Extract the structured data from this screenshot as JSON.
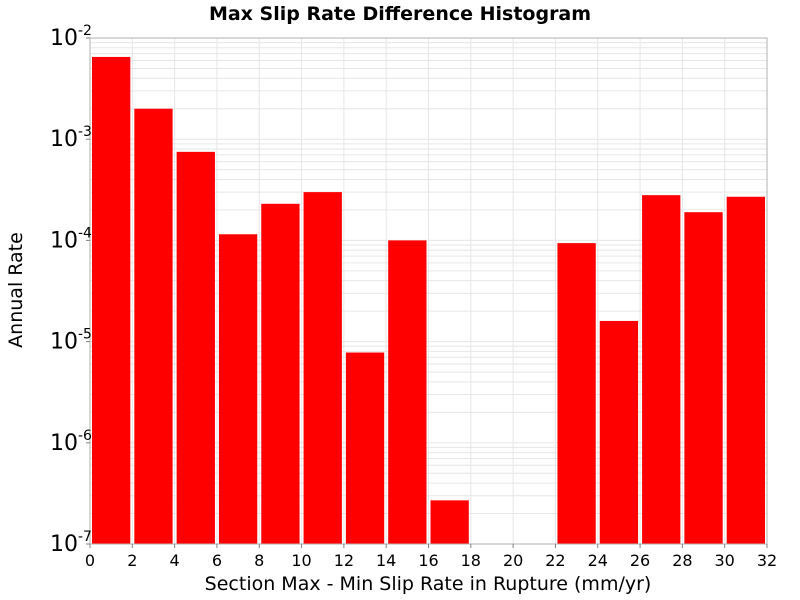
{
  "chart_data": {
    "type": "bar",
    "title": "Max Slip Rate Difference Histogram",
    "xlabel": "Section Max - Min Slip Rate in Rupture (mm/yr)",
    "ylabel": "Annual Rate",
    "x_ticks": [
      "0",
      "2",
      "4",
      "6",
      "8",
      "10",
      "12",
      "14",
      "16",
      "18",
      "20",
      "22",
      "24",
      "26",
      "28",
      "30",
      "32"
    ],
    "xlim": [
      0,
      32
    ],
    "y_scale": "log",
    "ylim": [
      1e-07,
      0.01
    ],
    "y_ticks": [
      {
        "base": "10",
        "exp": "-7"
      },
      {
        "base": "10",
        "exp": "-6"
      },
      {
        "base": "10",
        "exp": "-5"
      },
      {
        "base": "10",
        "exp": "-4"
      },
      {
        "base": "10",
        "exp": "-3"
      },
      {
        "base": "10",
        "exp": "-2"
      }
    ],
    "bin_width": 2,
    "bars": [
      {
        "x": 1,
        "value": 0.0065
      },
      {
        "x": 3,
        "value": 0.002
      },
      {
        "x": 5,
        "value": 0.00075
      },
      {
        "x": 7,
        "value": 0.000115
      },
      {
        "x": 9,
        "value": 0.00023
      },
      {
        "x": 11,
        "value": 0.0003
      },
      {
        "x": 13,
        "value": 7.8e-06
      },
      {
        "x": 15,
        "value": 0.0001
      },
      {
        "x": 17,
        "value": 2.7e-07
      },
      {
        "x": 23,
        "value": 9.4e-05
      },
      {
        "x": 25,
        "value": 1.6e-05
      },
      {
        "x": 27,
        "value": 0.00028
      },
      {
        "x": 29,
        "value": 0.00019
      },
      {
        "x": 31,
        "value": 0.00027
      }
    ],
    "bar_color": "#ff0000",
    "grid": true,
    "grid_color": "#e6e6e6"
  }
}
